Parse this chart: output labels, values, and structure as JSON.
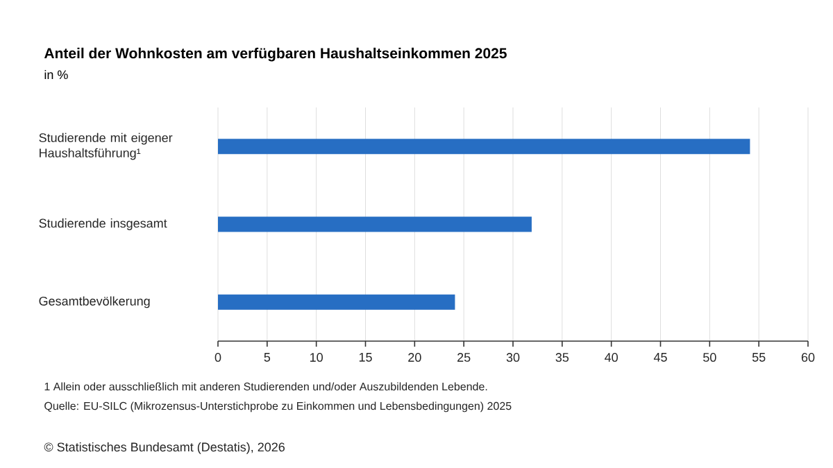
{
  "chart_data": {
    "type": "bar",
    "orientation": "horizontal",
    "title": "Anteil der Wohnkosten am verfügbaren Haushaltseinkommen 2025",
    "subtitle": "in %",
    "categories": [
      "Studierende mit eigener Haushaltsführung¹",
      "Studierende insgesamt",
      "Gesamtbevölkerung"
    ],
    "values": [
      54.1,
      31.9,
      24.1
    ],
    "color": "#276ec3",
    "xlim": [
      0,
      60
    ],
    "xticks": [
      0,
      5,
      10,
      15,
      20,
      25,
      30,
      35,
      40,
      45,
      50,
      55,
      60
    ],
    "grid": "x",
    "annotations": [
      "1 Allein oder ausschließlich mit anderen Studierenden und/oder Auszubildenden Lebende.",
      "Quelle: EU-SILC (Mikrozensus-Unterstichprobe zu Einkommen und Lebensbedingungen) 2025",
      "© Statistisches Bundesamt (Destatis), 2026"
    ]
  }
}
